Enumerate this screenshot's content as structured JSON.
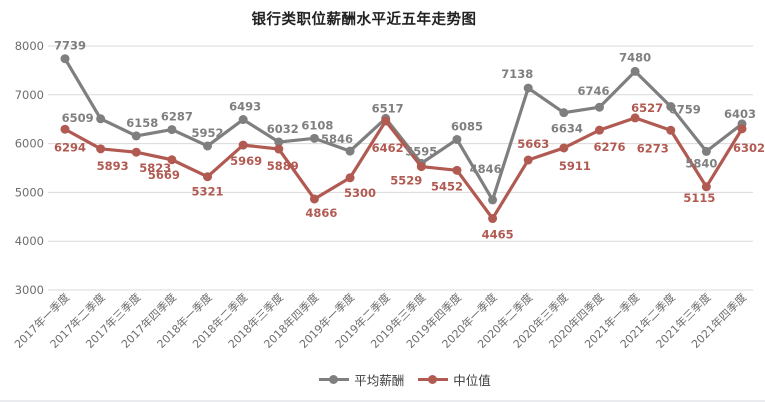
{
  "chart_data": {
    "type": "line",
    "title": "银行类职位薪酬水平近五年走势图",
    "categories": [
      "2017年一季度",
      "2017年二季度",
      "2017年三季度",
      "2017年四季度",
      "2018年一季度",
      "2018年二季度",
      "2018年三季度",
      "2018年四季度",
      "2019年一季度",
      "2019年二季度",
      "2019年三季度",
      "2019年四季度",
      "2020年一季度",
      "2020年二季度",
      "2020年三季度",
      "2020年四季度",
      "2021年一季度",
      "2021年二季度",
      "2021年三季度",
      "2021年四季度"
    ],
    "series": [
      {
        "name": "平均薪酬",
        "color": "#7F7F7F",
        "values": [
          7739,
          6509,
          6158,
          6287,
          5952,
          6493,
          6032,
          6108,
          5846,
          6517,
          5595,
          6085,
          4846,
          7138,
          6634,
          6746,
          7480,
          6759,
          5840,
          6403
        ],
        "label_offsets": [
          [
            5,
            -9
          ],
          [
            -23,
            3
          ],
          [
            6,
            -9
          ],
          [
            5,
            -9
          ],
          [
            0,
            -9
          ],
          [
            2,
            -9
          ],
          [
            4,
            -9
          ],
          [
            3,
            -9
          ],
          [
            -13,
            -8
          ],
          [
            2,
            -6
          ],
          [
            0,
            -8
          ],
          [
            10,
            -9
          ],
          [
            -7,
            -27
          ],
          [
            -11,
            -10
          ],
          [
            3,
            20
          ],
          [
            -6,
            -12
          ],
          [
            0,
            -10
          ],
          [
            14,
            7
          ],
          [
            -5,
            16
          ],
          [
            -2,
            -6
          ]
        ]
      },
      {
        "name": "中位值",
        "color": "#B15A52",
        "values": [
          6294,
          5893,
          5823,
          5669,
          5321,
          5969,
          5889,
          4866,
          5300,
          6462,
          5529,
          5452,
          4465,
          5663,
          5911,
          6276,
          6527,
          6273,
          5115,
          6302
        ],
        "label_offsets": [
          [
            5,
            22
          ],
          [
            12,
            21
          ],
          [
            19,
            20
          ],
          [
            -8,
            19
          ],
          [
            0,
            19
          ],
          [
            3,
            20
          ],
          [
            4,
            21
          ],
          [
            7,
            18
          ],
          [
            10,
            19
          ],
          [
            2,
            31
          ],
          [
            -15,
            18
          ],
          [
            -10,
            20
          ],
          [
            5,
            20
          ],
          [
            5,
            -12
          ],
          [
            11,
            22
          ],
          [
            10,
            21
          ],
          [
            12,
            -6
          ],
          [
            -18,
            22
          ],
          [
            -7,
            15
          ],
          [
            7,
            23
          ]
        ]
      }
    ],
    "ylim": [
      3000,
      8000
    ],
    "yticks": [
      3000,
      4000,
      5000,
      6000,
      7000,
      8000
    ],
    "ytick_step": 1000,
    "xlabel": "",
    "ylabel": "",
    "grid": "horizontal",
    "gridline_color": "#D9D9D9",
    "axis_text_color": "#6E6E6E",
    "data_label_bold": true,
    "marker": "circle",
    "x_label_rotation": -45,
    "legend_position": "bottom"
  }
}
